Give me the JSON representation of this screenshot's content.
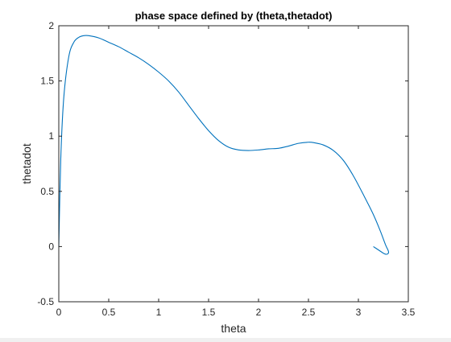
{
  "chart_data": {
    "type": "line",
    "title": "phase space defined by (theta,thetadot)",
    "xlabel": "theta",
    "ylabel": "thetadot",
    "xlim": [
      0,
      3.5
    ],
    "ylim": [
      -0.5,
      2
    ],
    "xticks": [
      0,
      0.5,
      1,
      1.5,
      2,
      2.5,
      3,
      3.5
    ],
    "xtick_labels": [
      "0",
      "0.5",
      "1",
      "1.5",
      "2",
      "2.5",
      "3",
      "3.5"
    ],
    "yticks": [
      -0.5,
      0,
      0.5,
      1,
      1.5,
      2
    ],
    "ytick_labels": [
      "-0.5",
      "0",
      "0.5",
      "1",
      "1.5",
      "2"
    ],
    "grid": false,
    "line_color": "#0072bd",
    "series": [
      {
        "x": [
          0,
          0.02,
          0.05,
          0.1,
          0.15,
          0.2,
          0.25,
          0.3,
          0.4,
          0.5,
          0.6,
          0.7,
          0.8,
          0.9,
          1.0,
          1.1,
          1.2,
          1.3,
          1.4,
          1.5,
          1.6,
          1.7,
          1.8,
          1.9,
          2.0,
          2.1,
          2.2,
          2.3,
          2.4,
          2.5,
          2.56,
          2.65,
          2.75,
          2.85,
          2.95,
          3.05,
          3.15,
          3.22,
          3.27,
          3.3,
          3.3,
          3.28,
          3.25,
          3.2,
          3.15
        ],
        "y": [
          0,
          0.8,
          1.35,
          1.72,
          1.85,
          1.895,
          1.91,
          1.91,
          1.89,
          1.85,
          1.81,
          1.76,
          1.71,
          1.65,
          1.58,
          1.5,
          1.4,
          1.28,
          1.16,
          1.05,
          0.96,
          0.9,
          0.875,
          0.87,
          0.875,
          0.885,
          0.89,
          0.91,
          0.935,
          0.945,
          0.94,
          0.92,
          0.87,
          0.78,
          0.64,
          0.47,
          0.29,
          0.14,
          0.02,
          -0.04,
          -0.06,
          -0.07,
          -0.06,
          -0.03,
          0
        ]
      }
    ]
  }
}
